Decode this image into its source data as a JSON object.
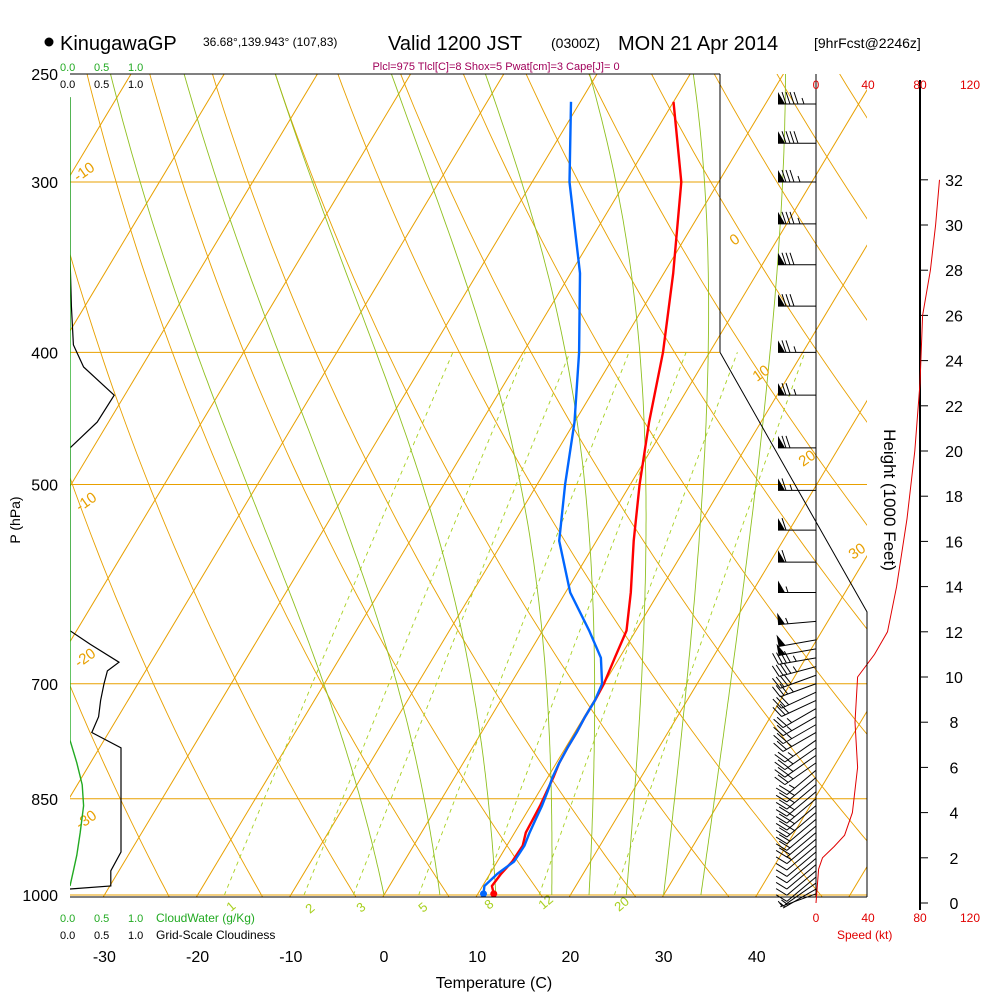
{
  "header": {
    "station": "KinugawaGP",
    "coords": "36.68°,139.943° (107,83)",
    "valid": "Valid 1200 JST",
    "utc": "(0300Z)",
    "date": "MON 21 Apr 2014",
    "forecast": "[9hrFcst@2246z]",
    "indices": "Plcl=975 Tlcl[C]=8 Shox=5 Pwat[cm]=3 Cape[J]= 0"
  },
  "colors": {
    "isotherm": "#e8a000",
    "mixing_ratio": "#a8d020",
    "moist_adiabat": "#90c020",
    "temperature": "#ff0000",
    "dewpoint": "#0066ff",
    "cloud_water": "#22aa22",
    "speed": "#e00000"
  },
  "chart_data": {
    "type": "line",
    "title": "KinugawaGP Valid 1200 JST (0300Z) MON 21 Apr 2014",
    "xlabel": "Temperature (C)",
    "ylabel": "P (hPa)",
    "x_ticks": [
      -30,
      -20,
      -10,
      0,
      10,
      20,
      30,
      40
    ],
    "p_ticks": [
      1000,
      850,
      700,
      500,
      400,
      300,
      250
    ],
    "xlim": [
      -35,
      45
    ],
    "plim": [
      1015,
      250
    ],
    "isotherm_labels": [
      "-10",
      "0",
      "10",
      "20",
      "30",
      "-10",
      "-20",
      "-30"
    ],
    "mixing_ratio_labels": [
      "1",
      "2",
      "3",
      "5",
      "8",
      "12",
      "20"
    ],
    "series": [
      {
        "name": "Temperature",
        "points": [
          [
            11.7,
            998
          ],
          [
            11.0,
            985
          ],
          [
            11.2,
            965
          ],
          [
            11.6,
            945
          ],
          [
            11.7,
            920
          ],
          [
            11.2,
            900
          ],
          [
            11.1,
            880
          ],
          [
            11.0,
            860
          ],
          [
            10.8,
            840
          ],
          [
            10.6,
            820
          ],
          [
            10.3,
            800
          ],
          [
            10.2,
            780
          ],
          [
            10.2,
            760
          ],
          [
            10.1,
            740
          ],
          [
            10.1,
            720
          ],
          [
            10.0,
            700
          ],
          [
            9.5,
            670
          ],
          [
            9.0,
            640
          ],
          [
            7.0,
            600
          ],
          [
            4.0,
            550
          ],
          [
            1.0,
            500
          ],
          [
            -2.0,
            450
          ],
          [
            -5.0,
            400
          ],
          [
            -9.0,
            350
          ],
          [
            -14.0,
            300
          ],
          [
            -20.0,
            262
          ]
        ]
      },
      {
        "name": "Dewpoint",
        "points": [
          [
            10.6,
            998
          ],
          [
            10.2,
            985
          ],
          [
            10.8,
            965
          ],
          [
            11.8,
            945
          ],
          [
            11.9,
            920
          ],
          [
            11.6,
            900
          ],
          [
            11.4,
            880
          ],
          [
            11.2,
            860
          ],
          [
            10.9,
            840
          ],
          [
            10.5,
            820
          ],
          [
            10.3,
            800
          ],
          [
            10.2,
            780
          ],
          [
            10.2,
            760
          ],
          [
            10.1,
            740
          ],
          [
            10.1,
            720
          ],
          [
            9.8,
            700
          ],
          [
            8.0,
            670
          ],
          [
            5.0,
            640
          ],
          [
            0.5,
            600
          ],
          [
            -4.0,
            550
          ],
          [
            -7.0,
            500
          ],
          [
            -10.0,
            450
          ],
          [
            -14.0,
            400
          ],
          [
            -19.0,
            350
          ],
          [
            -26.0,
            300
          ],
          [
            -31.0,
            262
          ]
        ]
      }
    ],
    "cloud_water_axis": {
      "label": "CloudWater (g/Kg)",
      "ticks": [
        "0.0",
        "0.5",
        "1.0"
      ]
    },
    "cloudiness_axis": {
      "label": "Grid-Scale Cloudiness",
      "ticks": [
        "0.0",
        "0.5",
        "1.0"
      ]
    },
    "cloudiness": [
      [
        0.0,
        260
      ],
      [
        0.0,
        340
      ],
      [
        0.02,
        370
      ],
      [
        0.05,
        395
      ],
      [
        0.2,
        410
      ],
      [
        0.65,
        430
      ],
      [
        0.4,
        450
      ],
      [
        0.0,
        470
      ],
      [
        0.0,
        640
      ],
      [
        0.3,
        655
      ],
      [
        0.72,
        675
      ],
      [
        0.55,
        685
      ],
      [
        0.5,
        700
      ],
      [
        0.45,
        720
      ],
      [
        0.42,
        740
      ],
      [
        0.32,
        760
      ],
      [
        0.75,
        780
      ],
      [
        0.75,
        930
      ],
      [
        0.6,
        960
      ],
      [
        0.6,
        985
      ],
      [
        0.0,
        990
      ]
    ],
    "cloud_water": [
      [
        0.0,
        260
      ],
      [
        0.0,
        770
      ],
      [
        0.1,
        800
      ],
      [
        0.18,
        830
      ],
      [
        0.2,
        860
      ],
      [
        0.15,
        900
      ],
      [
        0.1,
        935
      ],
      [
        0.05,
        960
      ],
      [
        0.0,
        985
      ]
    ],
    "speed_axis": {
      "label": "Speed (kt)",
      "ticks": [
        "0",
        "40",
        "80",
        "120"
      ]
    },
    "height_axis": {
      "label": "Height (1000 Feet)",
      "ticks": [
        "0",
        "2",
        "4",
        "6",
        "8",
        "10",
        "12",
        "14",
        "16",
        "18",
        "20",
        "22",
        "24",
        "26",
        "28",
        "30",
        "32"
      ]
    },
    "wind_speed": [
      [
        0,
        1000
      ],
      [
        2,
        1.5
      ],
      [
        5,
        2
      ],
      [
        14,
        2.5
      ],
      [
        22,
        3
      ],
      [
        28,
        4
      ],
      [
        32,
        6
      ],
      [
        30,
        8
      ],
      [
        32,
        10
      ],
      [
        45,
        11
      ],
      [
        55,
        12
      ],
      [
        62,
        14
      ],
      [
        70,
        17
      ],
      [
        76,
        20
      ],
      [
        80,
        23
      ],
      [
        82,
        26
      ],
      [
        88,
        28
      ],
      [
        92,
        30
      ],
      [
        95,
        32
      ]
    ],
    "wind_barbs": [
      {
        "p": 998,
        "dir": 250,
        "spd": 5
      },
      {
        "p": 990,
        "dir": 240,
        "spd": 5
      },
      {
        "p": 980,
        "dir": 235,
        "spd": 5
      },
      {
        "p": 970,
        "dir": 230,
        "spd": 10
      },
      {
        "p": 960,
        "dir": 230,
        "spd": 10
      },
      {
        "p": 950,
        "dir": 230,
        "spd": 10
      },
      {
        "p": 940,
        "dir": 230,
        "spd": 10
      },
      {
        "p": 930,
        "dir": 230,
        "spd": 10
      },
      {
        "p": 920,
        "dir": 230,
        "spd": 10
      },
      {
        "p": 910,
        "dir": 230,
        "spd": 15
      },
      {
        "p": 900,
        "dir": 230,
        "spd": 20
      },
      {
        "p": 890,
        "dir": 230,
        "spd": 20
      },
      {
        "p": 880,
        "dir": 230,
        "spd": 20
      },
      {
        "p": 870,
        "dir": 230,
        "spd": 25
      },
      {
        "p": 860,
        "dir": 230,
        "spd": 25
      },
      {
        "p": 850,
        "dir": 230,
        "spd": 25
      },
      {
        "p": 840,
        "dir": 230,
        "spd": 25
      },
      {
        "p": 830,
        "dir": 230,
        "spd": 25
      },
      {
        "p": 820,
        "dir": 230,
        "spd": 25
      },
      {
        "p": 810,
        "dir": 230,
        "spd": 25
      },
      {
        "p": 800,
        "dir": 235,
        "spd": 25
      },
      {
        "p": 790,
        "dir": 235,
        "spd": 25
      },
      {
        "p": 780,
        "dir": 235,
        "spd": 25
      },
      {
        "p": 770,
        "dir": 235,
        "spd": 25
      },
      {
        "p": 760,
        "dir": 240,
        "spd": 25
      },
      {
        "p": 750,
        "dir": 240,
        "spd": 25
      },
      {
        "p": 740,
        "dir": 240,
        "spd": 25
      },
      {
        "p": 730,
        "dir": 240,
        "spd": 25
      },
      {
        "p": 720,
        "dir": 245,
        "spd": 30
      },
      {
        "p": 710,
        "dir": 245,
        "spd": 30
      },
      {
        "p": 700,
        "dir": 250,
        "spd": 35
      },
      {
        "p": 690,
        "dir": 250,
        "spd": 40
      },
      {
        "p": 680,
        "dir": 255,
        "spd": 45
      },
      {
        "p": 670,
        "dir": 260,
        "spd": 45
      },
      {
        "p": 660,
        "dir": 260,
        "spd": 50
      },
      {
        "p": 650,
        "dir": 260,
        "spd": 50
      },
      {
        "p": 630,
        "dir": 265,
        "spd": 55
      },
      {
        "p": 600,
        "dir": 270,
        "spd": 55
      },
      {
        "p": 570,
        "dir": 270,
        "spd": 60
      },
      {
        "p": 540,
        "dir": 270,
        "spd": 60
      },
      {
        "p": 505,
        "dir": 270,
        "spd": 65
      },
      {
        "p": 470,
        "dir": 270,
        "spd": 70
      },
      {
        "p": 430,
        "dir": 270,
        "spd": 75
      },
      {
        "p": 400,
        "dir": 270,
        "spd": 75
      },
      {
        "p": 370,
        "dir": 270,
        "spd": 80
      },
      {
        "p": 345,
        "dir": 270,
        "spd": 80
      },
      {
        "p": 322,
        "dir": 270,
        "spd": 85
      },
      {
        "p": 300,
        "dir": 270,
        "spd": 85
      },
      {
        "p": 281,
        "dir": 270,
        "spd": 90
      },
      {
        "p": 263,
        "dir": 270,
        "spd": 95
      }
    ]
  }
}
